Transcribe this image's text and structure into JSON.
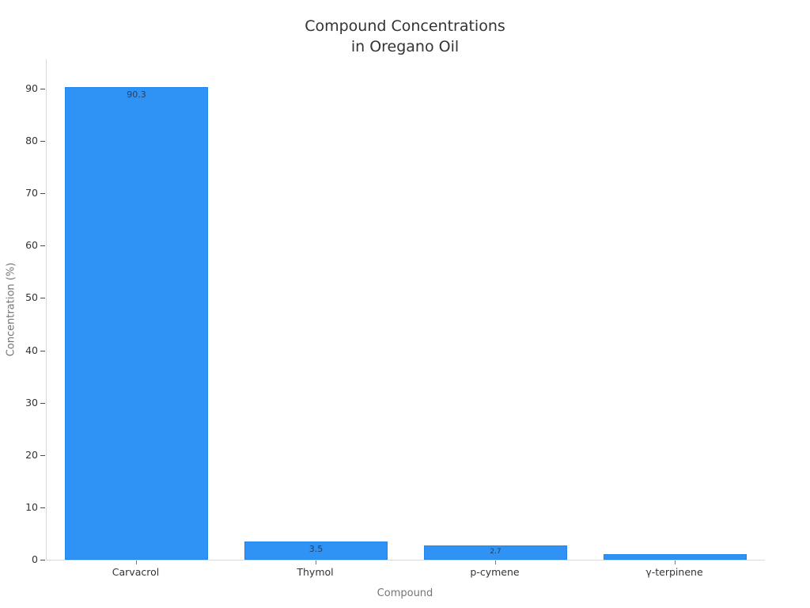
{
  "title": {
    "line1": "Compound Concentrations",
    "line2": "in Oregano Oil"
  },
  "chart_data": {
    "type": "bar",
    "title": "Compound Concentrations\nin Oregano Oil",
    "categories": [
      "Carvacrol",
      "Thymol",
      "p-cymene",
      "γ-terpinene"
    ],
    "values": [
      90.3,
      3.5,
      2.7,
      1.0
    ],
    "bar_labels": [
      "90.3",
      "3.5",
      "2.7",
      ""
    ],
    "xlabel": "Compound",
    "ylabel": "Concentration (%)",
    "ylim": [
      0,
      95.6
    ],
    "yticks": [
      0,
      10,
      20,
      30,
      40,
      50,
      60,
      70,
      80,
      90
    ],
    "grid": false,
    "legend": "none",
    "bar_color": "#2E93F5",
    "bar_border_color": "#2385EC",
    "bar_label_color": "#2a3f5f",
    "axis_line_color": "#d9d9d9",
    "tick_label_color": "#333333",
    "axis_title_color": "#757575"
  }
}
